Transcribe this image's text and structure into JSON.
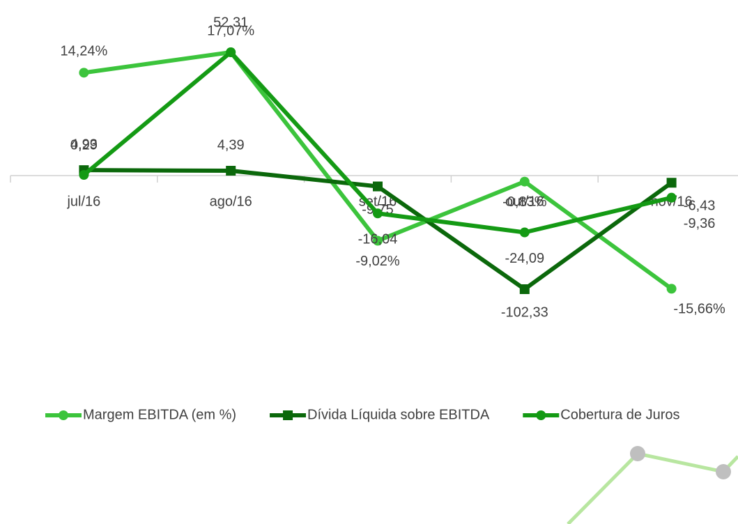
{
  "chart_data": {
    "type": "line",
    "categories": [
      "jul/16",
      "ago/16",
      "set/16",
      "out/16",
      "nov/16"
    ],
    "series": [
      {
        "name": "Margem EBITDA (em %)",
        "color": "#3cc43c",
        "marker": "circle",
        "values": [
          14.24,
          17.07,
          -9.02,
          -0.83,
          -15.66
        ],
        "value_labels": [
          "14,24%",
          "17,07%",
          "-9,02%",
          "-0,83%",
          "-15,66%"
        ]
      },
      {
        "name": "Dívida Líquida sobre EBITDA",
        "color": "#0b680b",
        "marker": "square",
        "values": [
          4.93,
          4.39,
          -9.75,
          -102.33,
          -6.43
        ],
        "value_labels": [
          "4,93",
          "4,39",
          "-9,75",
          "-102,33",
          "-6,43"
        ]
      },
      {
        "name": "Cobertura de Juros",
        "color": "#149a14",
        "marker": "circle",
        "values": [
          0.29,
          52.31,
          -16.04,
          -24.09,
          -9.36
        ],
        "value_labels": [
          "0,29",
          "52,31",
          "-16,04",
          "-24,09",
          "-9,36"
        ]
      }
    ],
    "legend": "bottom"
  }
}
